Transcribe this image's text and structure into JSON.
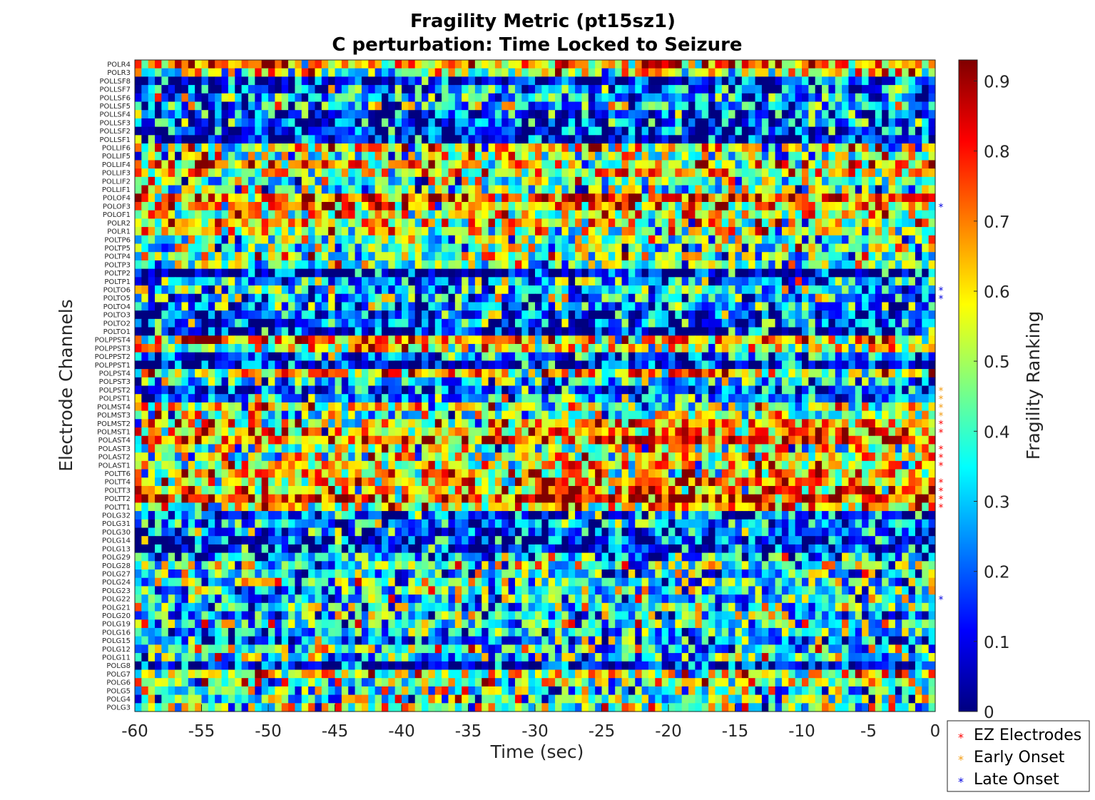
{
  "chart_data": {
    "type": "heatmap",
    "title": "Fragility Metric (pt15sz1)",
    "subtitle": "C perturbation:  Time Locked to Seizure",
    "xlabel": "Time (sec)",
    "ylabel": "Electrode Channels",
    "colorbar_label": "Fragility Ranking",
    "colormap": "jet",
    "xlim": [
      -60,
      0
    ],
    "x_ticks": [
      "-60",
      "-55",
      "-50",
      "-45",
      "-40",
      "-35",
      "-30",
      "-25",
      "-20",
      "-15",
      "-10",
      "-5",
      "0"
    ],
    "clim": [
      0,
      0.93
    ],
    "colorbar_ticks": [
      "0",
      "0.1",
      "0.2",
      "0.3",
      "0.4",
      "0.5",
      "0.6",
      "0.7",
      "0.8",
      "0.9"
    ],
    "time_bins": 120,
    "channels": [
      {
        "name": "POLR4",
        "level": 0.74,
        "type": "none"
      },
      {
        "name": "POLR3",
        "level": 0.55,
        "type": "none"
      },
      {
        "name": "POLLSF8",
        "level": 0.12,
        "type": "none"
      },
      {
        "name": "POLLSF7",
        "level": 0.22,
        "type": "none"
      },
      {
        "name": "POLLSF6",
        "level": 0.3,
        "type": "none"
      },
      {
        "name": "POLLSF5",
        "level": 0.34,
        "type": "none"
      },
      {
        "name": "POLLSF4",
        "level": 0.2,
        "type": "none"
      },
      {
        "name": "POLLSF3",
        "level": 0.17,
        "type": "none"
      },
      {
        "name": "POLLSF2",
        "level": 0.15,
        "type": "none"
      },
      {
        "name": "POLLSF1",
        "level": 0.1,
        "type": "none"
      },
      {
        "name": "POLLIF6",
        "level": 0.6,
        "type": "none"
      },
      {
        "name": "POLLIF5",
        "level": 0.5,
        "type": "none"
      },
      {
        "name": "POLLIF4",
        "level": 0.68,
        "type": "none"
      },
      {
        "name": "POLLIF3",
        "level": 0.65,
        "type": "none"
      },
      {
        "name": "POLLIF2",
        "level": 0.45,
        "type": "none"
      },
      {
        "name": "POLLIF1",
        "level": 0.4,
        "type": "none"
      },
      {
        "name": "POLOF4",
        "level": 0.8,
        "type": "none"
      },
      {
        "name": "POLOF3",
        "level": 0.72,
        "type": "late"
      },
      {
        "name": "POLOF1",
        "level": 0.6,
        "type": "none"
      },
      {
        "name": "POLR2",
        "level": 0.62,
        "type": "none"
      },
      {
        "name": "POLR1",
        "level": 0.56,
        "type": "none"
      },
      {
        "name": "POLTP6",
        "level": 0.45,
        "type": "none"
      },
      {
        "name": "POLTP5",
        "level": 0.48,
        "type": "none"
      },
      {
        "name": "POLTP4",
        "level": 0.5,
        "type": "none"
      },
      {
        "name": "POLTP3",
        "level": 0.45,
        "type": "none"
      },
      {
        "name": "POLTP2",
        "level": 0.06,
        "type": "none"
      },
      {
        "name": "POLTP1",
        "level": 0.3,
        "type": "none"
      },
      {
        "name": "POLTO6",
        "level": 0.35,
        "type": "late"
      },
      {
        "name": "POLTO5",
        "level": 0.3,
        "type": "late"
      },
      {
        "name": "POLTO4",
        "level": 0.24,
        "type": "none"
      },
      {
        "name": "POLTO3",
        "level": 0.16,
        "type": "none"
      },
      {
        "name": "POLTO2",
        "level": 0.2,
        "type": "none"
      },
      {
        "name": "POLTO1",
        "level": 0.1,
        "type": "none"
      },
      {
        "name": "POLPPST4",
        "level": 0.72,
        "type": "none"
      },
      {
        "name": "POLPPST3",
        "level": 0.6,
        "type": "none"
      },
      {
        "name": "POLPPST2",
        "level": 0.22,
        "type": "none"
      },
      {
        "name": "POLPPST1",
        "level": 0.1,
        "type": "none"
      },
      {
        "name": "POLPST4",
        "level": 0.66,
        "type": "none"
      },
      {
        "name": "POLPST3",
        "level": 0.36,
        "type": "none"
      },
      {
        "name": "POLPST2",
        "level": 0.18,
        "type": "early"
      },
      {
        "name": "POLPST1",
        "level": 0.3,
        "type": "early"
      },
      {
        "name": "POLMST4",
        "level": 0.58,
        "type": "early"
      },
      {
        "name": "POLMST3",
        "level": 0.5,
        "type": "early"
      },
      {
        "name": "POLMST2",
        "level": 0.62,
        "type": "ez"
      },
      {
        "name": "POLMST1",
        "level": 0.6,
        "type": "ez"
      },
      {
        "name": "POLAST4",
        "level": 0.8,
        "type": "none"
      },
      {
        "name": "POLAST3",
        "level": 0.5,
        "type": "ez"
      },
      {
        "name": "POLAST2",
        "level": 0.55,
        "type": "ez"
      },
      {
        "name": "POLAST1",
        "level": 0.58,
        "type": "ez"
      },
      {
        "name": "POLTT6",
        "level": 0.65,
        "type": "none"
      },
      {
        "name": "POLTT4",
        "level": 0.66,
        "type": "ez"
      },
      {
        "name": "POLTT3",
        "level": 0.7,
        "type": "ez"
      },
      {
        "name": "POLTT2",
        "level": 0.82,
        "type": "ez"
      },
      {
        "name": "POLTT1",
        "level": 0.6,
        "type": "ez"
      },
      {
        "name": "POLG32",
        "level": 0.22,
        "type": "none"
      },
      {
        "name": "POLG31",
        "level": 0.28,
        "type": "none"
      },
      {
        "name": "POLG30",
        "level": 0.2,
        "type": "none"
      },
      {
        "name": "POLG14",
        "level": 0.12,
        "type": "none"
      },
      {
        "name": "POLG13",
        "level": 0.1,
        "type": "none"
      },
      {
        "name": "POLG29",
        "level": 0.3,
        "type": "none"
      },
      {
        "name": "POLG28",
        "level": 0.45,
        "type": "none"
      },
      {
        "name": "POLG27",
        "level": 0.36,
        "type": "none"
      },
      {
        "name": "POLG24",
        "level": 0.42,
        "type": "none"
      },
      {
        "name": "POLG23",
        "level": 0.4,
        "type": "none"
      },
      {
        "name": "POLG22",
        "level": 0.35,
        "type": "late"
      },
      {
        "name": "POLG21",
        "level": 0.4,
        "type": "none"
      },
      {
        "name": "POLG20",
        "level": 0.35,
        "type": "none"
      },
      {
        "name": "POLG19",
        "level": 0.45,
        "type": "none"
      },
      {
        "name": "POLG16",
        "level": 0.35,
        "type": "none"
      },
      {
        "name": "POLG15",
        "level": 0.25,
        "type": "none"
      },
      {
        "name": "POLG12",
        "level": 0.45,
        "type": "none"
      },
      {
        "name": "POLG11",
        "level": 0.4,
        "type": "none"
      },
      {
        "name": "POLG8",
        "level": 0.08,
        "type": "none"
      },
      {
        "name": "POLG7",
        "level": 0.55,
        "type": "none"
      },
      {
        "name": "POLG6",
        "level": 0.52,
        "type": "none"
      },
      {
        "name": "POLG5",
        "level": 0.42,
        "type": "none"
      },
      {
        "name": "POLG4",
        "level": 0.46,
        "type": "none"
      },
      {
        "name": "POLG3",
        "level": 0.5,
        "type": "none"
      }
    ],
    "marker_colors": {
      "ez": "#ff0000",
      "early": "#f39c12",
      "late": "#0000e0"
    },
    "legend": [
      {
        "key": "ez",
        "label": "EZ Electrodes"
      },
      {
        "key": "early",
        "label": "Early Onset"
      },
      {
        "key": "late",
        "label": "Late Onset"
      }
    ],
    "legend_position": "bottom-right"
  }
}
